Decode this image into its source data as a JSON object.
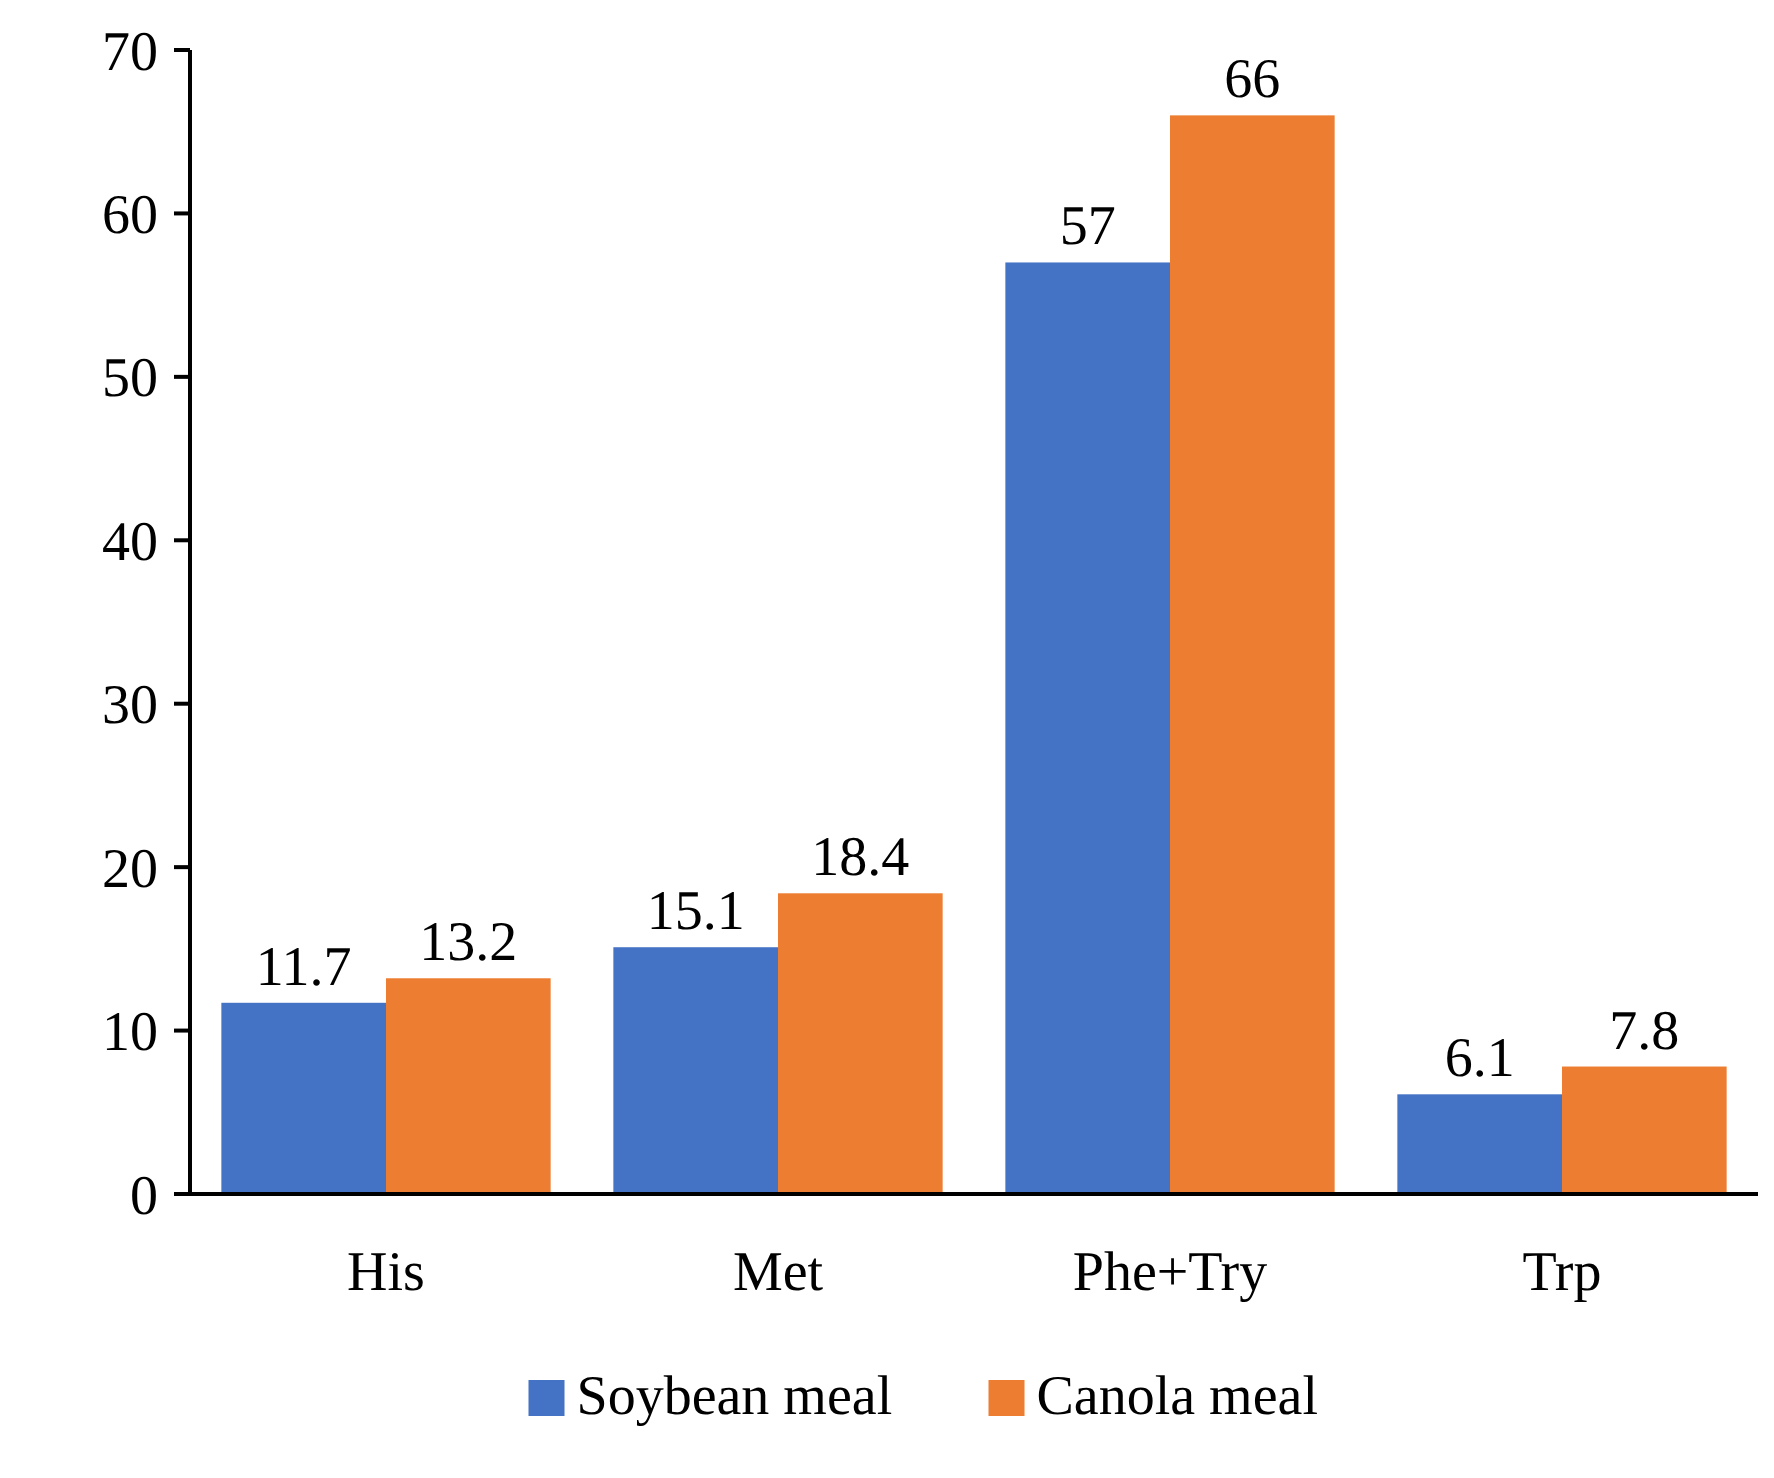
{
  "chart_data": {
    "type": "bar",
    "categories": [
      "His",
      "Met",
      "Phe+Try",
      "Trp"
    ],
    "series": [
      {
        "name": "Soybean meal",
        "color": "#4472c4",
        "values": [
          11.7,
          15.1,
          57,
          6.1
        ]
      },
      {
        "name": "Canola meal",
        "color": "#ed7d31",
        "values": [
          13.2,
          18.4,
          66,
          7.8
        ]
      }
    ],
    "ylim": [
      0,
      70
    ],
    "yticks": [
      0,
      10,
      20,
      30,
      40,
      50,
      60,
      70
    ],
    "data_labels": true,
    "legend": "bottom",
    "grid": false
  }
}
